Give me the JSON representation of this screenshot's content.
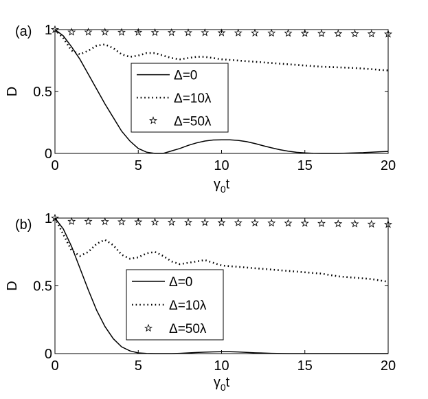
{
  "chart_data": [
    {
      "type": "line",
      "panel_label": "(a)",
      "xlabel": "γ",
      "xlabel_sub": "0",
      "xlabel_suffix": "t",
      "ylabel": "D",
      "xlim": [
        0,
        20
      ],
      "ylim": [
        0,
        1
      ],
      "xticks": [
        0,
        5,
        10,
        15,
        20
      ],
      "yticks": [
        0,
        0.5,
        1
      ],
      "ytick_labels": [
        "0",
        "0.5",
        "1"
      ],
      "grid": false,
      "legend_position": "center-left",
      "series": [
        {
          "name": "Δ=0",
          "style": "solid",
          "x": [
            0,
            0.5,
            1,
            1.5,
            2,
            2.5,
            3,
            3.5,
            4,
            4.5,
            5,
            5.5,
            6,
            6.5,
            7,
            7.5,
            8,
            8.5,
            9,
            9.5,
            10,
            10.5,
            11,
            11.5,
            12,
            12.5,
            13,
            13.5,
            14,
            14.5,
            15,
            15.5,
            16,
            16.5,
            17,
            17.5,
            18,
            18.5,
            19,
            19.5,
            20
          ],
          "values": [
            1.0,
            0.95,
            0.86,
            0.76,
            0.64,
            0.52,
            0.4,
            0.29,
            0.18,
            0.1,
            0.04,
            0.01,
            0.0,
            0.0,
            0.02,
            0.04,
            0.065,
            0.085,
            0.1,
            0.108,
            0.11,
            0.11,
            0.105,
            0.095,
            0.08,
            0.062,
            0.045,
            0.03,
            0.018,
            0.009,
            0.004,
            0.001,
            0.0,
            0.0,
            0.0,
            0.002,
            0.004,
            0.006,
            0.01,
            0.013,
            0.016
          ]
        },
        {
          "name": "Δ=10λ",
          "style": "dotted",
          "x": [
            0,
            0.5,
            1,
            1.5,
            2,
            2.5,
            3,
            3.5,
            4,
            4.5,
            5,
            5.5,
            6,
            6.5,
            7,
            7.5,
            8,
            8.5,
            9,
            9.5,
            10,
            11,
            12,
            13,
            14,
            15,
            16,
            17,
            18,
            19,
            20
          ],
          "values": [
            1.0,
            0.93,
            0.83,
            0.8,
            0.83,
            0.87,
            0.88,
            0.85,
            0.8,
            0.78,
            0.79,
            0.81,
            0.81,
            0.79,
            0.77,
            0.76,
            0.77,
            0.78,
            0.78,
            0.77,
            0.76,
            0.75,
            0.74,
            0.73,
            0.72,
            0.71,
            0.7,
            0.695,
            0.69,
            0.68,
            0.67
          ]
        },
        {
          "name": "Δ=50λ",
          "style": "star",
          "x": [
            0,
            1,
            2,
            3,
            4,
            5,
            6,
            7,
            8,
            9,
            10,
            11,
            12,
            13,
            14,
            15,
            16,
            17,
            18,
            19,
            20
          ],
          "values": [
            1.0,
            0.98,
            0.98,
            0.98,
            0.978,
            0.978,
            0.976,
            0.976,
            0.975,
            0.975,
            0.974,
            0.973,
            0.972,
            0.971,
            0.97,
            0.969,
            0.968,
            0.967,
            0.966,
            0.965,
            0.964
          ]
        }
      ]
    },
    {
      "type": "line",
      "panel_label": "(b)",
      "xlabel": "γ",
      "xlabel_sub": "0",
      "xlabel_suffix": "t",
      "ylabel": "D",
      "xlim": [
        0,
        20
      ],
      "ylim": [
        0,
        1
      ],
      "xticks": [
        0,
        5,
        10,
        15,
        20
      ],
      "yticks": [
        0,
        0.5,
        1
      ],
      "ytick_labels": [
        "0",
        "0.5",
        "1"
      ],
      "grid": false,
      "legend_position": "center-left",
      "series": [
        {
          "name": "Δ=0",
          "style": "solid",
          "x": [
            0,
            0.5,
            1,
            1.5,
            2,
            2.5,
            3,
            3.5,
            4,
            4.5,
            5,
            5.5,
            6,
            6.5,
            7,
            7.5,
            8,
            8.5,
            9,
            9.5,
            10,
            10.5,
            11,
            11.5,
            12,
            13,
            14,
            15,
            16,
            17,
            18,
            19,
            20
          ],
          "values": [
            1.0,
            0.92,
            0.79,
            0.63,
            0.47,
            0.32,
            0.2,
            0.11,
            0.05,
            0.02,
            0.005,
            0.001,
            0.0,
            0.0,
            0.0,
            0.002,
            0.005,
            0.008,
            0.011,
            0.013,
            0.014,
            0.014,
            0.012,
            0.009,
            0.006,
            0.002,
            0.0,
            0.0,
            0.0,
            0.0,
            0.0,
            0.0,
            0.0
          ]
        },
        {
          "name": "Δ=10λ",
          "style": "dotted",
          "x": [
            0,
            0.5,
            1,
            1.5,
            2,
            2.5,
            3,
            3.5,
            4,
            4.5,
            5,
            5.5,
            6,
            6.5,
            7,
            7.5,
            8,
            8.5,
            9,
            9.5,
            10,
            11,
            12,
            13,
            14,
            15,
            16,
            17,
            18,
            19,
            20
          ],
          "values": [
            1.0,
            0.88,
            0.76,
            0.72,
            0.75,
            0.81,
            0.84,
            0.8,
            0.73,
            0.7,
            0.71,
            0.74,
            0.75,
            0.72,
            0.68,
            0.66,
            0.67,
            0.68,
            0.69,
            0.67,
            0.65,
            0.64,
            0.63,
            0.62,
            0.61,
            0.6,
            0.59,
            0.57,
            0.56,
            0.55,
            0.53
          ]
        },
        {
          "name": "Δ=50λ",
          "style": "star",
          "x": [
            0,
            1,
            2,
            3,
            4,
            5,
            6,
            7,
            8,
            9,
            10,
            11,
            12,
            13,
            14,
            15,
            16,
            17,
            18,
            19,
            20
          ],
          "values": [
            1.0,
            0.975,
            0.975,
            0.973,
            0.972,
            0.971,
            0.97,
            0.969,
            0.968,
            0.967,
            0.966,
            0.965,
            0.964,
            0.963,
            0.962,
            0.961,
            0.96,
            0.958,
            0.957,
            0.955,
            0.953
          ]
        }
      ]
    }
  ]
}
